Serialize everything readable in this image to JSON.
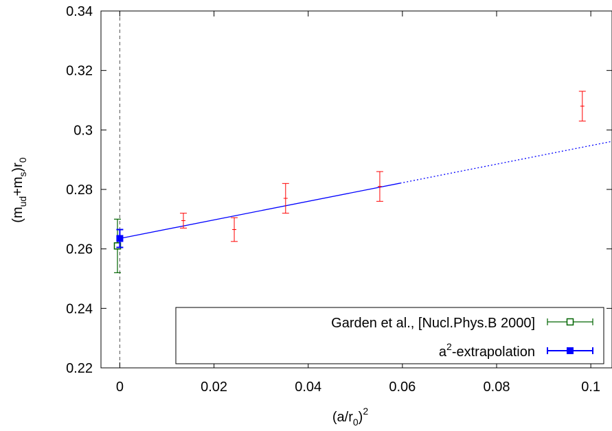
{
  "chart_data": {
    "type": "scatter",
    "xlabel": "(a/r0)^2",
    "ylabel": "(mud+ms)r0",
    "xlim": [
      -0.004,
      0.1045
    ],
    "ylim": [
      0.22,
      0.34
    ],
    "x_ticks": [
      0,
      0.02,
      0.04,
      0.06,
      0.08,
      0.1
    ],
    "x_tick_labels": [
      "0",
      "0.02",
      "0.04",
      "0.06",
      "0.08",
      "0.1"
    ],
    "y_ticks": [
      0.22,
      0.24,
      0.26,
      0.28,
      0.3,
      0.32,
      0.34
    ],
    "y_tick_labels": [
      "0.22",
      "0.24",
      "0.26",
      "0.28",
      "0.3",
      "0.32",
      "0.34"
    ],
    "vertical_reference_line_x": 0,
    "data_points": {
      "color": "#ff0000",
      "points": [
        {
          "x": 0.0135,
          "y": 0.2695,
          "yerr_low": 0.267,
          "yerr_high": 0.272
        },
        {
          "x": 0.0243,
          "y": 0.2665,
          "yerr_low": 0.2625,
          "yerr_high": 0.2705
        },
        {
          "x": 0.0352,
          "y": 0.277,
          "yerr_low": 0.272,
          "yerr_high": 0.282
        },
        {
          "x": 0.0552,
          "y": 0.281,
          "yerr_low": 0.276,
          "yerr_high": 0.286
        },
        {
          "x": 0.0982,
          "y": 0.308,
          "yerr_low": 0.303,
          "yerr_high": 0.313
        }
      ]
    },
    "fit_line": {
      "color": "#0000ff",
      "intercept": 0.2635,
      "slope": 0.3125,
      "solid_until_x": 0.0595
    },
    "series": [
      {
        "name": "Garden et al., [Nucl.Phys.B 2000]",
        "color": "#006400",
        "marker": "open-square",
        "x": -0.0005,
        "y": 0.261,
        "yerr_low": 0.252,
        "yerr_high": 0.27
      },
      {
        "name": "a2-extrapolation",
        "color": "#0000ff",
        "marker": "filled-square",
        "x": 0,
        "y": 0.2635,
        "yerr_low": 0.2605,
        "yerr_high": 0.2665
      }
    ],
    "legend": {
      "placement": "bottom-right",
      "entries": [
        {
          "label": "Garden et al., [Nucl.Phys.B 2000]",
          "color": "#006400",
          "marker": "open-square"
        },
        {
          "label_main": "a",
          "label_sup": "2",
          "label_rest": "-extrapolation",
          "color": "#0000ff",
          "marker": "filled-square"
        }
      ]
    }
  }
}
